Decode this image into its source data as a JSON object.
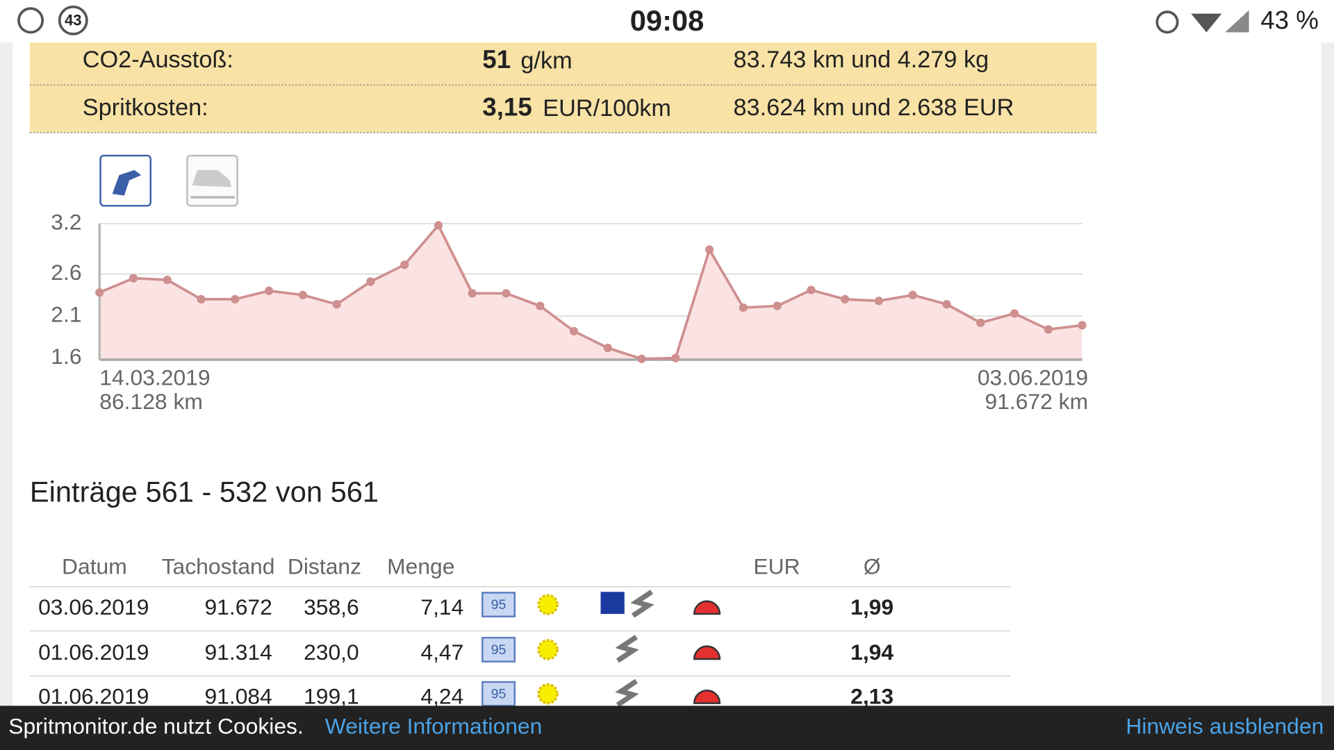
{
  "status_bar": {
    "notification_count": "43",
    "time": "09:08",
    "battery": "43 %"
  },
  "stats": [
    {
      "label": "CO2-Ausstoß:",
      "value": "51",
      "unit": "g/km",
      "basis": "83.743 km und 4.279 kg"
    },
    {
      "label": "Spritkosten:",
      "value": "3,15",
      "unit": "EUR/100km",
      "basis": "83.624 km und 2.638 EUR"
    }
  ],
  "chart_data": {
    "type": "line",
    "color": "#cf8f8f",
    "fill": "#fbe3e3",
    "values": [
      2.38,
      2.55,
      2.53,
      2.3,
      2.3,
      2.4,
      2.35,
      2.24,
      2.51,
      2.71,
      3.18,
      2.37,
      2.37,
      2.22,
      1.92,
      1.72,
      1.59,
      1.6,
      2.89,
      2.2,
      2.22,
      2.41,
      2.3,
      2.28,
      2.35,
      2.24,
      2.02,
      2.13,
      1.94,
      1.99
    ],
    "ylim": [
      1.58,
      3.2
    ],
    "yticks": [
      1.6,
      2.1,
      2.6,
      3.2
    ],
    "grid": true,
    "start_date": "14.03.2019",
    "start_km": "86.128 km",
    "end_date": "03.06.2019",
    "end_km": "91.672 km"
  },
  "entries_title": "Einträge 561 - 532 von 561",
  "table": {
    "columns": [
      "Datum",
      "Tachostand",
      "Distanz",
      "Menge",
      "EUR",
      "Ø"
    ],
    "rows": [
      {
        "date": "03.06.2019",
        "odometer": "91.672",
        "distance": "358,6",
        "quantity": "7,14",
        "fuel": "95",
        "average": "1,99"
      },
      {
        "date": "01.06.2019",
        "odometer": "91.314",
        "distance": "230,0",
        "quantity": "4,47",
        "fuel": "95",
        "average": "1,94"
      },
      {
        "date": "01.06.2019",
        "odometer": "91.084",
        "distance": "199,1",
        "quantity": "4,24",
        "fuel": "95",
        "average": "2,13"
      }
    ]
  },
  "cookie_bar": {
    "text": "Spritmonitor.de nutzt Cookies.",
    "link": "Weitere Informationen",
    "dismiss": "Hinweis ausblenden"
  }
}
